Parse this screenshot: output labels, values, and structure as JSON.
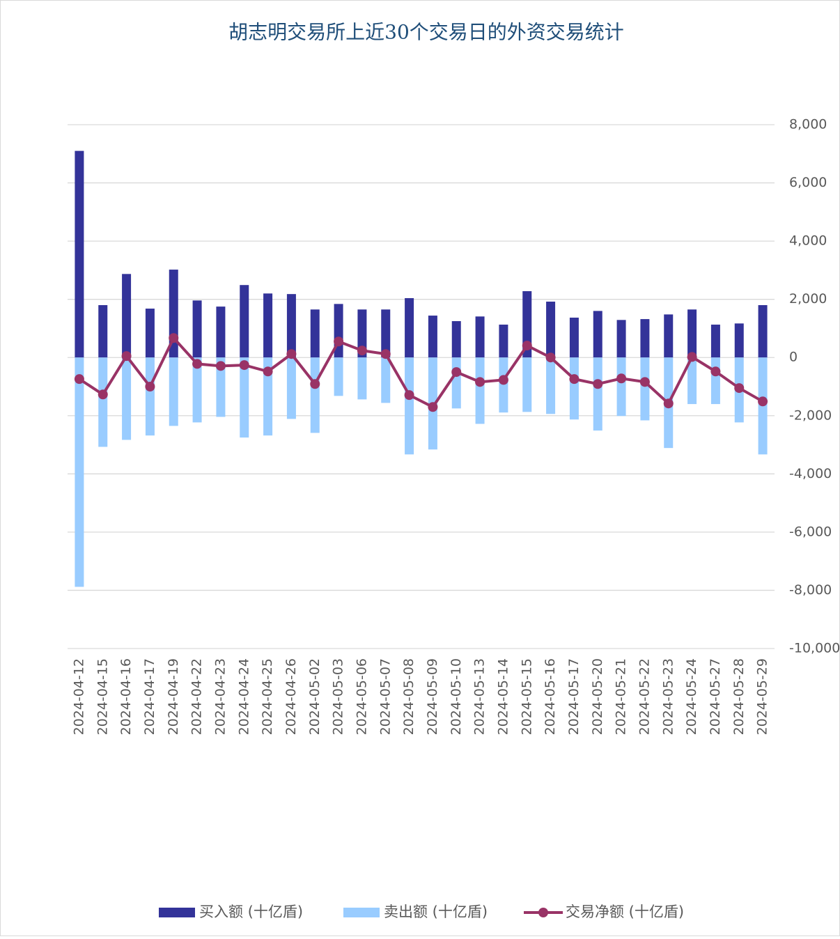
{
  "chart_data": {
    "type": "bar_line",
    "title": "胡志明交易所上近30个交易日的外资交易统计",
    "categories": [
      "2024-04-12",
      "2024-04-15",
      "2024-04-16",
      "2024-04-17",
      "2024-04-19",
      "2024-04-22",
      "2024-04-23",
      "2024-04-24",
      "2024-04-25",
      "2024-04-26",
      "2024-05-02",
      "2024-05-03",
      "2024-05-06",
      "2024-05-07",
      "2024-05-08",
      "2024-05-09",
      "2024-05-10",
      "2024-05-13",
      "2024-05-14",
      "2024-05-15",
      "2024-05-16",
      "2024-05-17",
      "2024-05-20",
      "2024-05-21",
      "2024-05-22",
      "2024-05-23",
      "2024-05-24",
      "2024-05-27",
      "2024-05-28",
      "2024-05-29"
    ],
    "series": [
      {
        "name": "买入额 (十亿盾)",
        "type": "bar",
        "color": "#333399",
        "values": [
          7100,
          1800,
          2870,
          1680,
          3020,
          1960,
          1750,
          2490,
          2200,
          2180,
          1650,
          1840,
          1650,
          1650,
          2040,
          1440,
          1250,
          1410,
          1130,
          2280,
          1920,
          1370,
          1600,
          1290,
          1320,
          1480,
          1650,
          1130,
          1170,
          1800
        ]
      },
      {
        "name": "卖出额 (十亿盾)",
        "type": "bar",
        "color": "#99ccff",
        "values": [
          -7880,
          -3070,
          -2830,
          -2680,
          -2350,
          -2230,
          -2040,
          -2750,
          -2680,
          -2110,
          -2590,
          -1320,
          -1440,
          -1560,
          -3330,
          -3160,
          -1750,
          -2280,
          -1890,
          -1870,
          -1940,
          -2130,
          -2510,
          -2010,
          -2160,
          -3110,
          -1600,
          -1600,
          -2230,
          -3330
        ]
      },
      {
        "name": "交易净额 (十亿盾)",
        "type": "line",
        "color": "#993366",
        "values": [
          -740,
          -1270,
          50,
          -1000,
          670,
          -220,
          -290,
          -260,
          -480,
          120,
          -910,
          550,
          240,
          120,
          -1290,
          -1700,
          -500,
          -840,
          -770,
          410,
          0,
          -740,
          -910,
          -720,
          -840,
          -1580,
          20,
          -480,
          -1050,
          -1510
        ]
      }
    ],
    "ylim": [
      -10000,
      8000
    ],
    "yticks": [
      {
        "value": 8000,
        "label": "8,000"
      },
      {
        "value": 6000,
        "label": "6,000"
      },
      {
        "value": 4000,
        "label": "4,000"
      },
      {
        "value": 2000,
        "label": "2,000"
      },
      0,
      {
        "value": -2000,
        "label": "-2,000"
      },
      {
        "value": -4000,
        "label": "-4,000"
      },
      {
        "value": -6000,
        "label": "-6,000"
      },
      {
        "value": -8000,
        "label": "-8,000"
      },
      {
        "value": -10000,
        "label": "-10,000"
      }
    ],
    "grid": true,
    "legend": "bottom"
  }
}
